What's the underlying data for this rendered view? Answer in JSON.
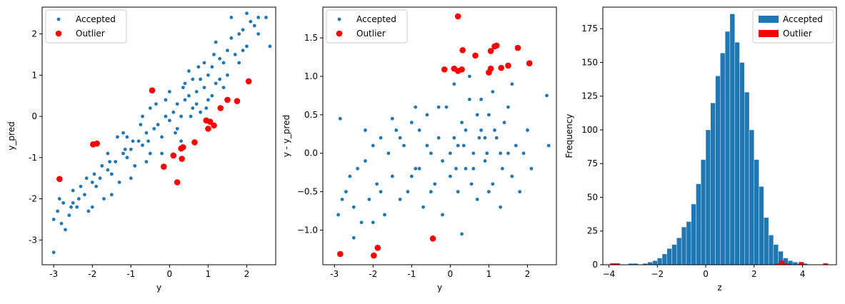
{
  "colors": {
    "accepted": "#1f77b4",
    "outlier": "#ff0000"
  },
  "chart_data": [
    {
      "type": "scatter",
      "xlabel": "y",
      "ylabel": "y_pred",
      "xlim": [
        -3.3,
        2.75
      ],
      "ylim": [
        -3.6,
        2.65
      ],
      "xticks": [
        -3,
        -2,
        -1,
        0,
        1,
        2
      ],
      "yticks": [
        -3,
        -2,
        -1,
        0,
        1,
        2
      ],
      "legend_position": "upper-left",
      "series": [
        {
          "name": "Accepted",
          "marker": "small-dot",
          "points": [
            [
              -2.85,
              -2.0
            ],
            [
              -2.9,
              -2.3
            ],
            [
              -3.0,
              -2.5
            ],
            [
              -2.8,
              -2.6
            ],
            [
              -2.6,
              -2.4
            ],
            [
              -2.5,
              -2.1
            ],
            [
              -2.4,
              -2.2
            ],
            [
              -2.2,
              -1.9
            ],
            [
              -2.1,
              -2.3
            ],
            [
              -2.0,
              -1.6
            ],
            [
              -1.9,
              -1.7
            ],
            [
              -1.8,
              -1.5
            ],
            [
              -1.7,
              -2.0
            ],
            [
              -1.6,
              -1.3
            ],
            [
              -1.5,
              -1.4
            ],
            [
              -1.4,
              -1.1
            ],
            [
              -1.3,
              -1.6
            ],
            [
              -1.2,
              -0.9
            ],
            [
              -1.1,
              -1.0
            ],
            [
              -1.0,
              -0.8
            ],
            [
              -0.9,
              -1.2
            ],
            [
              -0.8,
              -0.6
            ],
            [
              -0.7,
              -0.7
            ],
            [
              -0.6,
              -0.4
            ],
            [
              -0.5,
              -0.9
            ],
            [
              -0.4,
              -0.3
            ],
            [
              -0.3,
              -0.2
            ],
            [
              -0.2,
              -0.5
            ],
            [
              -0.1,
              0.0
            ],
            [
              0.0,
              -0.1
            ],
            [
              0.1,
              0.1
            ],
            [
              0.2,
              0.3
            ],
            [
              0.3,
              0.0
            ],
            [
              0.4,
              0.4
            ],
            [
              0.5,
              0.5
            ],
            [
              0.6,
              0.2
            ],
            [
              0.7,
              0.6
            ],
            [
              0.8,
              0.9
            ],
            [
              0.9,
              0.7
            ],
            [
              1.0,
              1.0
            ],
            [
              1.1,
              1.2
            ],
            [
              1.2,
              0.8
            ],
            [
              1.3,
              1.4
            ],
            [
              1.4,
              1.3
            ],
            [
              1.5,
              1.6
            ],
            [
              1.6,
              1.9
            ],
            [
              1.7,
              1.5
            ],
            [
              1.8,
              2.0
            ],
            [
              1.9,
              2.1
            ],
            [
              2.0,
              1.7
            ],
            [
              2.1,
              2.3
            ],
            [
              2.2,
              2.2
            ],
            [
              2.3,
              2.0
            ],
            [
              2.5,
              2.4
            ],
            [
              2.6,
              1.7
            ],
            [
              -3.0,
              -3.3
            ],
            [
              -2.7,
              -2.75
            ],
            [
              -2.3,
              -1.7
            ],
            [
              -1.5,
              -1.9
            ],
            [
              -1.0,
              -1.5
            ],
            [
              -0.5,
              0.2
            ],
            [
              0.0,
              0.6
            ],
            [
              0.3,
              -0.6
            ],
            [
              0.8,
              0.1
            ],
            [
              1.2,
              1.8
            ],
            [
              1.6,
              2.4
            ],
            [
              -0.2,
              -0.9
            ],
            [
              0.5,
              1.1
            ],
            [
              1.0,
              0.4
            ],
            [
              1.4,
              0.7
            ],
            [
              2.0,
              2.5
            ],
            [
              -1.2,
              -0.4
            ],
            [
              -0.7,
              0.0
            ],
            [
              0.2,
              -0.3
            ],
            [
              0.6,
              0.9
            ],
            [
              0.9,
              1.3
            ],
            [
              1.3,
              0.9
            ],
            [
              1.8,
              1.3
            ],
            [
              -2.5,
              -1.8
            ],
            [
              -2.0,
              -2.2
            ],
            [
              -1.6,
              -0.9
            ],
            [
              -1.1,
              -0.5
            ],
            [
              -0.6,
              -1.1
            ],
            [
              -0.1,
              0.4
            ],
            [
              0.4,
              0.8
            ],
            [
              0.7,
              0.3
            ],
            [
              1.1,
              0.5
            ],
            [
              1.5,
              1.0
            ],
            [
              1.9,
              1.6
            ],
            [
              2.3,
              2.4
            ],
            [
              0.15,
              -0.4
            ],
            [
              0.35,
              0.7
            ],
            [
              0.55,
              0.0
            ],
            [
              0.75,
              1.2
            ],
            [
              0.95,
              0.2
            ],
            [
              1.15,
              1.5
            ],
            [
              -0.35,
              0.3
            ],
            [
              -0.55,
              -0.6
            ],
            [
              -0.75,
              -0.2
            ],
            [
              -0.95,
              -0.6
            ],
            [
              -1.15,
              -0.8
            ],
            [
              -1.35,
              -0.5
            ],
            [
              -1.55,
              -1.1
            ],
            [
              -1.75,
              -1.2
            ],
            [
              -1.95,
              -1.4
            ],
            [
              -2.15,
              -1.5
            ],
            [
              -2.35,
              -2.0
            ],
            [
              -2.55,
              -2.2
            ],
            [
              -2.75,
              -2.1
            ]
          ]
        },
        {
          "name": "Outlier",
          "marker": "large-dot",
          "points": [
            [
              -2.85,
              -1.52
            ],
            [
              -1.98,
              -0.68
            ],
            [
              -1.88,
              -0.66
            ],
            [
              -0.45,
              0.63
            ],
            [
              -0.15,
              -1.22
            ],
            [
              0.1,
              -0.95
            ],
            [
              0.2,
              -1.6
            ],
            [
              0.3,
              -0.78
            ],
            [
              0.32,
              -1.03
            ],
            [
              0.35,
              -0.75
            ],
            [
              0.65,
              -0.63
            ],
            [
              0.95,
              -0.1
            ],
            [
              1.0,
              -0.3
            ],
            [
              1.05,
              -0.13
            ],
            [
              1.15,
              -0.22
            ],
            [
              1.32,
              0.2
            ],
            [
              1.5,
              0.4
            ],
            [
              1.75,
              0.37
            ],
            [
              2.05,
              0.85
            ]
          ]
        }
      ]
    },
    {
      "type": "scatter",
      "xlabel": "y",
      "ylabel": "y - y_pred",
      "xlim": [
        -3.3,
        2.75
      ],
      "ylim": [
        -1.45,
        1.9
      ],
      "xticks": [
        -3,
        -2,
        -1,
        0,
        1,
        2
      ],
      "yticks": [
        -1.0,
        -0.5,
        0.0,
        0.5,
        1.0,
        1.5
      ],
      "ytick_labels": [
        "−1.0",
        "−0.5",
        "0.0",
        "0.5",
        "1.0",
        "1.5"
      ],
      "legend_position": "upper-left",
      "series": [
        {
          "name": "Accepted",
          "marker": "small-dot",
          "points": [
            [
              -2.9,
              -0.8
            ],
            [
              -2.8,
              -0.6
            ],
            [
              -2.85,
              0.45
            ],
            [
              -2.7,
              -0.5
            ],
            [
              -2.6,
              -0.3
            ],
            [
              -2.5,
              -0.7
            ],
            [
              -2.4,
              -0.2
            ],
            [
              -2.3,
              -0.9
            ],
            [
              -2.2,
              -0.1
            ],
            [
              -2.1,
              -0.6
            ],
            [
              -2.0,
              0.1
            ],
            [
              -1.9,
              -0.4
            ],
            [
              -1.8,
              0.2
            ],
            [
              -1.7,
              -0.8
            ],
            [
              -1.6,
              0.0
            ],
            [
              -1.5,
              -0.3
            ],
            [
              -1.4,
              0.3
            ],
            [
              -1.3,
              -0.6
            ],
            [
              -1.2,
              0.1
            ],
            [
              -1.1,
              -0.5
            ],
            [
              -1.0,
              0.4
            ],
            [
              -0.9,
              -0.2
            ],
            [
              -0.8,
              0.3
            ],
            [
              -0.7,
              -0.7
            ],
            [
              -0.6,
              0.5
            ],
            [
              -0.5,
              0.0
            ],
            [
              -0.4,
              -0.4
            ],
            [
              -0.3,
              0.2
            ],
            [
              -0.2,
              -0.1
            ],
            [
              -0.1,
              0.6
            ],
            [
              0.0,
              -0.3
            ],
            [
              0.1,
              0.2
            ],
            [
              0.2,
              -0.5
            ],
            [
              0.3,
              0.4
            ],
            [
              0.4,
              -0.2
            ],
            [
              0.5,
              0.7
            ],
            [
              0.6,
              0.0
            ],
            [
              0.7,
              -0.6
            ],
            [
              0.8,
              0.3
            ],
            [
              0.9,
              -0.1
            ],
            [
              1.0,
              0.5
            ],
            [
              1.1,
              -0.4
            ],
            [
              1.2,
              0.2
            ],
            [
              1.3,
              -0.7
            ],
            [
              1.4,
              0.4
            ],
            [
              1.5,
              0.0
            ],
            [
              1.6,
              -0.3
            ],
            [
              1.7,
              0.1
            ],
            [
              1.8,
              -0.5
            ],
            [
              2.0,
              0.3
            ],
            [
              2.1,
              -0.2
            ],
            [
              2.5,
              0.75
            ],
            [
              2.55,
              0.1
            ],
            [
              0.3,
              -1.05
            ],
            [
              -0.8,
              -0.2
            ],
            [
              -1.5,
              0.45
            ],
            [
              0.1,
              0.9
            ],
            [
              0.5,
              1.0
            ],
            [
              1.1,
              0.8
            ],
            [
              1.6,
              0.9
            ],
            [
              -0.3,
              0.6
            ],
            [
              0.8,
              0.7
            ],
            [
              -2.0,
              -0.9
            ],
            [
              -2.5,
              -1.1
            ],
            [
              -0.2,
              -0.8
            ],
            [
              1.9,
              0.0
            ],
            [
              0.2,
              0.1
            ],
            [
              0.4,
              0.3
            ],
            [
              0.6,
              -0.2
            ],
            [
              0.9,
              0.2
            ],
            [
              1.3,
              0.0
            ],
            [
              0.0,
              0.0
            ],
            [
              -0.5,
              -0.5
            ],
            [
              -1.0,
              -0.3
            ],
            [
              -1.3,
              0.2
            ],
            [
              -0.6,
              0.1
            ],
            [
              0.7,
              0.5
            ],
            [
              1.0,
              -0.5
            ],
            [
              1.5,
              0.6
            ],
            [
              -1.8,
              -0.5
            ],
            [
              -2.2,
              0.3
            ],
            [
              -0.9,
              0.6
            ],
            [
              0.15,
              -0.2
            ],
            [
              0.35,
              0.1
            ],
            [
              0.55,
              -0.4
            ],
            [
              0.75,
              0.2
            ],
            [
              0.95,
              0.0
            ],
            [
              1.15,
              0.3
            ],
            [
              1.35,
              -0.2
            ]
          ]
        },
        {
          "name": "Outlier",
          "marker": "large-dot",
          "points": [
            [
              -2.85,
              -1.31
            ],
            [
              -1.98,
              -1.33
            ],
            [
              -1.88,
              -1.23
            ],
            [
              -0.45,
              -1.11
            ],
            [
              -0.15,
              1.09
            ],
            [
              0.1,
              1.1
            ],
            [
              0.2,
              1.07
            ],
            [
              0.2,
              1.78
            ],
            [
              0.3,
              1.09
            ],
            [
              0.32,
              1.34
            ],
            [
              0.65,
              1.27
            ],
            [
              1.0,
              1.05
            ],
            [
              1.05,
              1.1
            ],
            [
              1.05,
              1.33
            ],
            [
              1.15,
              1.39
            ],
            [
              1.2,
              1.4
            ],
            [
              1.32,
              1.11
            ],
            [
              1.5,
              1.14
            ],
            [
              1.75,
              1.37
            ],
            [
              2.05,
              1.17
            ]
          ]
        }
      ]
    },
    {
      "type": "bar",
      "subtype": "histogram",
      "xlabel": "z",
      "ylabel": "Frequency",
      "xlim": [
        -4.25,
        5.4
      ],
      "ylim": [
        0,
        191
      ],
      "xticks": [
        -4,
        -2,
        0,
        2,
        4
      ],
      "xtick_labels": [
        "−4",
        "−2",
        "0",
        "2",
        "4"
      ],
      "yticks": [
        0,
        25,
        50,
        75,
        100,
        125,
        150,
        175
      ],
      "legend_position": "upper-right",
      "series": [
        {
          "name": "Accepted",
          "bin_start": -3.2,
          "bin_width": 0.2,
          "values": [
            1,
            1,
            0,
            1,
            2,
            3,
            5,
            8,
            12,
            15,
            20,
            28,
            32,
            45,
            60,
            78,
            100,
            120,
            140,
            157,
            173,
            186,
            165,
            150,
            128,
            100,
            78,
            58,
            35,
            22,
            15,
            10,
            5,
            3,
            2,
            1,
            1
          ]
        },
        {
          "name": "Outlier",
          "bins": [
            {
              "x0": -3.95,
              "x1": -3.75,
              "value": 1
            },
            {
              "x0": -3.75,
              "x1": -3.55,
              "value": 1
            },
            {
              "x0": 2.85,
              "x1": 3.05,
              "value": 1
            },
            {
              "x0": 3.05,
              "x1": 3.25,
              "value": 3
            },
            {
              "x0": 3.25,
              "x1": 3.45,
              "value": 1
            },
            {
              "x0": 3.85,
              "x1": 4.05,
              "value": 2
            },
            {
              "x0": 4.85,
              "x1": 5.05,
              "value": 1
            }
          ]
        }
      ]
    }
  ]
}
